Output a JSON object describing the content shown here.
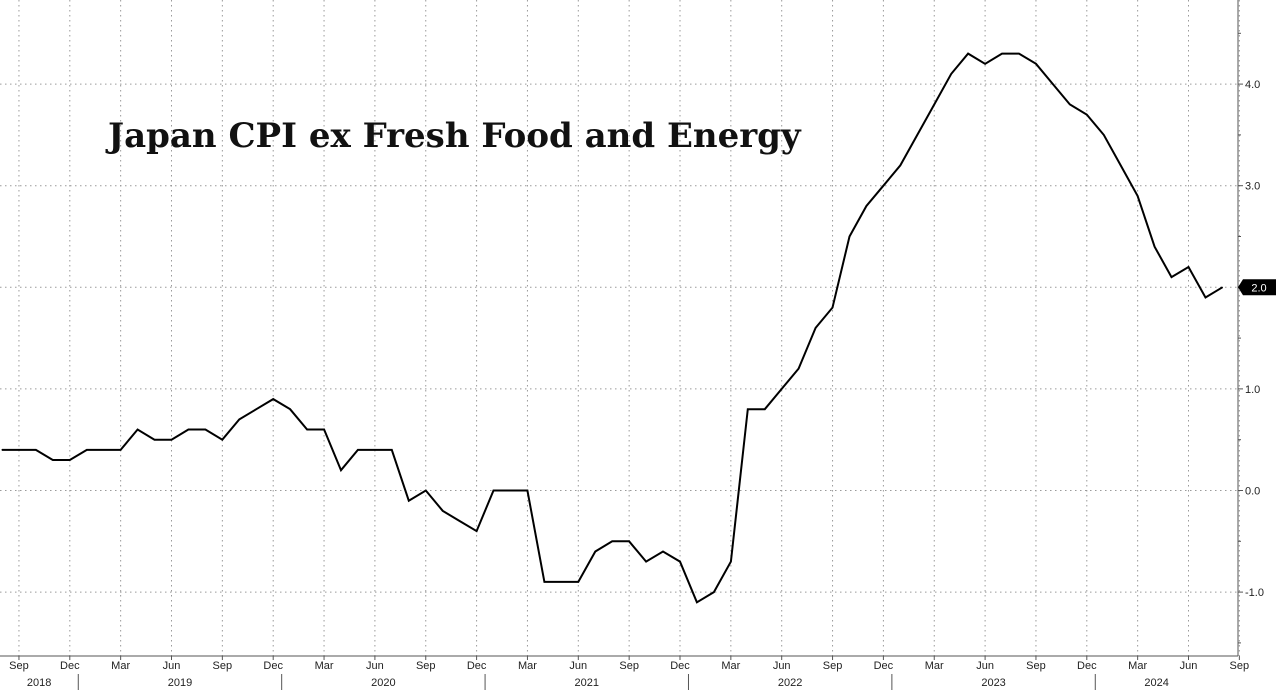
{
  "chart_data": {
    "type": "line",
    "title": "Japan CPI ex Fresh Food and Energy",
    "xlabel": "",
    "ylabel": "",
    "ylim": [
      -1.55,
      4.6
    ],
    "yticks": [
      "4.0",
      "3.0",
      "2.0",
      "1.0",
      "0.0",
      "-1.0"
    ],
    "ytick_values": [
      4.0,
      3.0,
      2.0,
      1.0,
      0.0,
      -1.0
    ],
    "last_value_label": "2.0",
    "month_labels": [
      "Sep",
      "Dec",
      "Mar",
      "Jun",
      "Sep",
      "Dec",
      "Mar",
      "Jun",
      "Sep",
      "Dec",
      "Mar",
      "Jun",
      "Sep",
      "Dec",
      "Mar",
      "Jun",
      "Sep",
      "Dec",
      "Mar",
      "Jun",
      "Sep",
      "Dec",
      "Mar",
      "Jun",
      "Sep"
    ],
    "year_labels": [
      "2018",
      "2019",
      "2020",
      "2021",
      "2022",
      "2023",
      "2024"
    ],
    "x_start": "2018-08",
    "x": [
      "2018-08",
      "2018-09",
      "2018-10",
      "2018-11",
      "2018-12",
      "2019-01",
      "2019-02",
      "2019-03",
      "2019-04",
      "2019-05",
      "2019-06",
      "2019-07",
      "2019-08",
      "2019-09",
      "2019-10",
      "2019-11",
      "2019-12",
      "2020-01",
      "2020-02",
      "2020-03",
      "2020-04",
      "2020-05",
      "2020-06",
      "2020-07",
      "2020-08",
      "2020-09",
      "2020-10",
      "2020-11",
      "2020-12",
      "2021-01",
      "2021-02",
      "2021-03",
      "2021-04",
      "2021-05",
      "2021-06",
      "2021-07",
      "2021-08",
      "2021-09",
      "2021-10",
      "2021-11",
      "2021-12",
      "2022-01",
      "2022-02",
      "2022-03",
      "2022-04",
      "2022-05",
      "2022-06",
      "2022-07",
      "2022-08",
      "2022-09",
      "2022-10",
      "2022-11",
      "2022-12",
      "2023-01",
      "2023-02",
      "2023-03",
      "2023-04",
      "2023-05",
      "2023-06",
      "2023-07",
      "2023-08",
      "2023-09",
      "2023-10",
      "2023-11",
      "2023-12",
      "2024-01",
      "2024-02",
      "2024-03",
      "2024-04",
      "2024-05",
      "2024-06",
      "2024-07",
      "2024-08"
    ],
    "series": [
      {
        "values": [
          0.4,
          0.4,
          0.4,
          0.3,
          0.3,
          0.4,
          0.4,
          0.4,
          0.6,
          0.5,
          0.5,
          0.6,
          0.6,
          0.5,
          0.7,
          0.8,
          0.9,
          0.8,
          0.6,
          0.6,
          0.2,
          0.4,
          0.4,
          0.4,
          -0.1,
          0.0,
          -0.2,
          -0.3,
          -0.4,
          0.0,
          0.0,
          0.0,
          -0.9,
          -0.9,
          -0.9,
          -0.6,
          -0.5,
          -0.5,
          -0.7,
          -0.6,
          -0.7,
          -1.1,
          -1.0,
          -0.7,
          0.8,
          0.8,
          1.0,
          1.2,
          1.6,
          1.8,
          2.5,
          2.8,
          3.0,
          3.2,
          3.5,
          3.8,
          4.1,
          4.3,
          4.2,
          4.3,
          4.3,
          4.2,
          4.0,
          3.8,
          3.7,
          3.5,
          3.2,
          2.9,
          2.4,
          2.1,
          2.2,
          1.9,
          2.0
        ],
        "color": "#000000"
      }
    ],
    "grid": true,
    "colors": {
      "line": "#000000",
      "grid": "#9a9a9a",
      "label_bg": "#000000",
      "label_fg": "#ffffff"
    }
  }
}
